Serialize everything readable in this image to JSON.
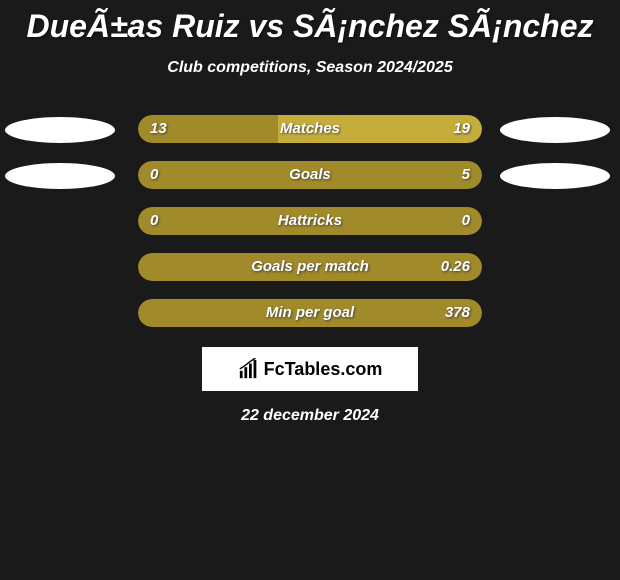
{
  "title": "DueÃ±as Ruiz vs SÃ¡nchez SÃ¡nchez",
  "subtitle": "Club competitions, Season 2024/2025",
  "date": "22 december 2024",
  "footer_brand": "FcTables.com",
  "colors": {
    "background": "#1a1a1a",
    "bar_left": "#a08a2a",
    "bar_right": "#b8a030",
    "bar_full": "#a08a2a",
    "ellipse": "#ffffff",
    "text": "#ffffff"
  },
  "stats": [
    {
      "label": "Matches",
      "left_value": "13",
      "right_value": "19",
      "left_pct": 40.6,
      "right_pct": 59.4,
      "left_color": "#a08a2a",
      "right_color": "#c4ad3a",
      "show_ellipses": true
    },
    {
      "label": "Goals",
      "left_value": "0",
      "right_value": "5",
      "left_pct": 0,
      "right_pct": 100,
      "left_color": "#a08a2a",
      "right_color": "#a08a2a",
      "show_ellipses": true
    },
    {
      "label": "Hattricks",
      "left_value": "0",
      "right_value": "0",
      "left_pct": 100,
      "right_pct": 0,
      "left_color": "#a08a2a",
      "right_color": "#a08a2a",
      "show_ellipses": false
    },
    {
      "label": "Goals per match",
      "left_value": "",
      "right_value": "0.26",
      "left_pct": 0,
      "right_pct": 100,
      "left_color": "#a08a2a",
      "right_color": "#a08a2a",
      "show_ellipses": false
    },
    {
      "label": "Min per goal",
      "left_value": "",
      "right_value": "378",
      "left_pct": 0,
      "right_pct": 100,
      "left_color": "#a08a2a",
      "right_color": "#a08a2a",
      "show_ellipses": false
    }
  ]
}
